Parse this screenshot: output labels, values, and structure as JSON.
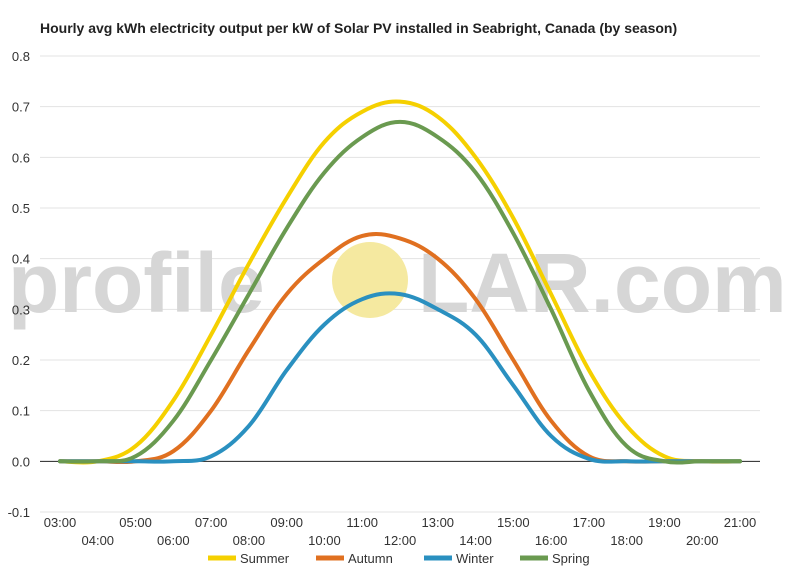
{
  "chart_data": {
    "type": "line",
    "title": "Hourly avg kWh electricity output per kW of Solar PV installed in Seabright, Canada (by season)",
    "xlabel": "",
    "ylabel": "",
    "ylim": [
      -0.1,
      0.8
    ],
    "yticks": [
      "-0.1",
      "0.0",
      "0.1",
      "0.2",
      "0.3",
      "0.4",
      "0.5",
      "0.6",
      "0.7",
      "0.8"
    ],
    "x": [
      "03:00",
      "04:00",
      "05:00",
      "06:00",
      "07:00",
      "08:00",
      "09:00",
      "10:00",
      "11:00",
      "12:00",
      "13:00",
      "14:00",
      "15:00",
      "16:00",
      "17:00",
      "18:00",
      "19:00",
      "20:00",
      "21:00"
    ],
    "grid": true,
    "legend": "bottom",
    "series": [
      {
        "name": "Summer",
        "color": "#f5d000",
        "values": [
          0.0,
          0.0,
          0.03,
          0.12,
          0.25,
          0.39,
          0.52,
          0.63,
          0.69,
          0.71,
          0.68,
          0.6,
          0.48,
          0.33,
          0.18,
          0.07,
          0.01,
          0.0,
          0.0
        ]
      },
      {
        "name": "Autumn",
        "color": "#e07020",
        "values": [
          0.0,
          0.0,
          0.0,
          0.02,
          0.1,
          0.22,
          0.33,
          0.4,
          0.445,
          0.44,
          0.4,
          0.32,
          0.2,
          0.08,
          0.01,
          0.0,
          0.0,
          0.0,
          0.0
        ]
      },
      {
        "name": "Winter",
        "color": "#2a90c0",
        "values": [
          0.0,
          0.0,
          0.0,
          0.0,
          0.01,
          0.07,
          0.18,
          0.27,
          0.32,
          0.33,
          0.3,
          0.25,
          0.15,
          0.05,
          0.005,
          0.0,
          0.0,
          0.0,
          0.0
        ]
      },
      {
        "name": "Spring",
        "color": "#6a9a50",
        "values": [
          0.0,
          0.0,
          0.01,
          0.08,
          0.2,
          0.33,
          0.46,
          0.57,
          0.64,
          0.67,
          0.64,
          0.57,
          0.45,
          0.3,
          0.14,
          0.03,
          0.0,
          0.0,
          0.0
        ]
      }
    ]
  },
  "watermark": {
    "left": "profile",
    "right": "LAR.com",
    "sun_color": "#f5e9a0"
  }
}
